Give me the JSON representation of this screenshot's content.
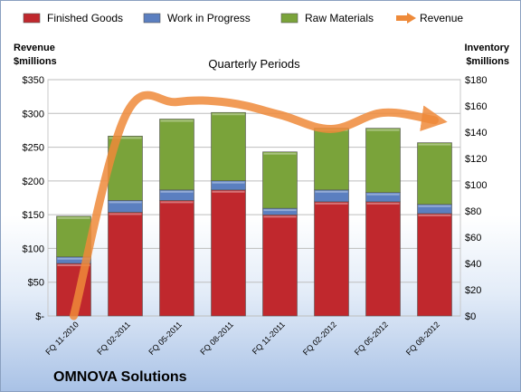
{
  "chart_data": {
    "type": "bar",
    "stacked": true,
    "subtitle": "Quarterly Periods",
    "company": "OMNOVA Solutions",
    "categories": [
      "FQ 11-2010",
      "FQ 02-2011",
      "FQ 05-2011",
      "FQ 08-2011",
      "FQ 11-2011",
      "FQ 02-2012",
      "FQ 05-2012",
      "FQ 08-2012"
    ],
    "y_left": {
      "title_line1": "Revenue",
      "title_line2": "$millions",
      "ylim": [
        0,
        350
      ],
      "ticks": [
        0,
        50,
        100,
        150,
        200,
        250,
        300,
        350
      ],
      "tick_labels": [
        "$-",
        "$50",
        "$100",
        "$150",
        "$200",
        "$250",
        "$300",
        "$350"
      ]
    },
    "y_right": {
      "title_line1": "Inventory",
      "title_line2": "$millions",
      "ylim": [
        0,
        180
      ],
      "ticks": [
        0,
        20,
        40,
        60,
        80,
        100,
        120,
        140,
        160,
        180
      ],
      "tick_labels": [
        "$0",
        "$20",
        "$40",
        "$60",
        "$80",
        "$100",
        "$120",
        "$140",
        "$160",
        "$180"
      ]
    },
    "series": [
      {
        "name": "Finished Goods",
        "axis": "right",
        "color": "#c0282d",
        "values": [
          40,
          79,
          88,
          96,
          77,
          87,
          87,
          78
        ]
      },
      {
        "name": "Work in Progress",
        "axis": "right",
        "color": "#5b7fc0",
        "values": [
          5,
          9,
          8,
          7,
          5,
          9,
          7,
          7
        ]
      },
      {
        "name": "Raw Materials",
        "axis": "right",
        "color": "#7aa33a",
        "values": [
          31,
          49,
          54,
          52,
          43,
          47,
          49,
          47
        ]
      },
      {
        "name": "Revenue",
        "axis": "left",
        "type": "line",
        "color": "#ee8a3a",
        "values": [
          0,
          296,
          317,
          316,
          298,
          277,
          301,
          290
        ]
      }
    ],
    "grid": true,
    "legend": "top"
  }
}
